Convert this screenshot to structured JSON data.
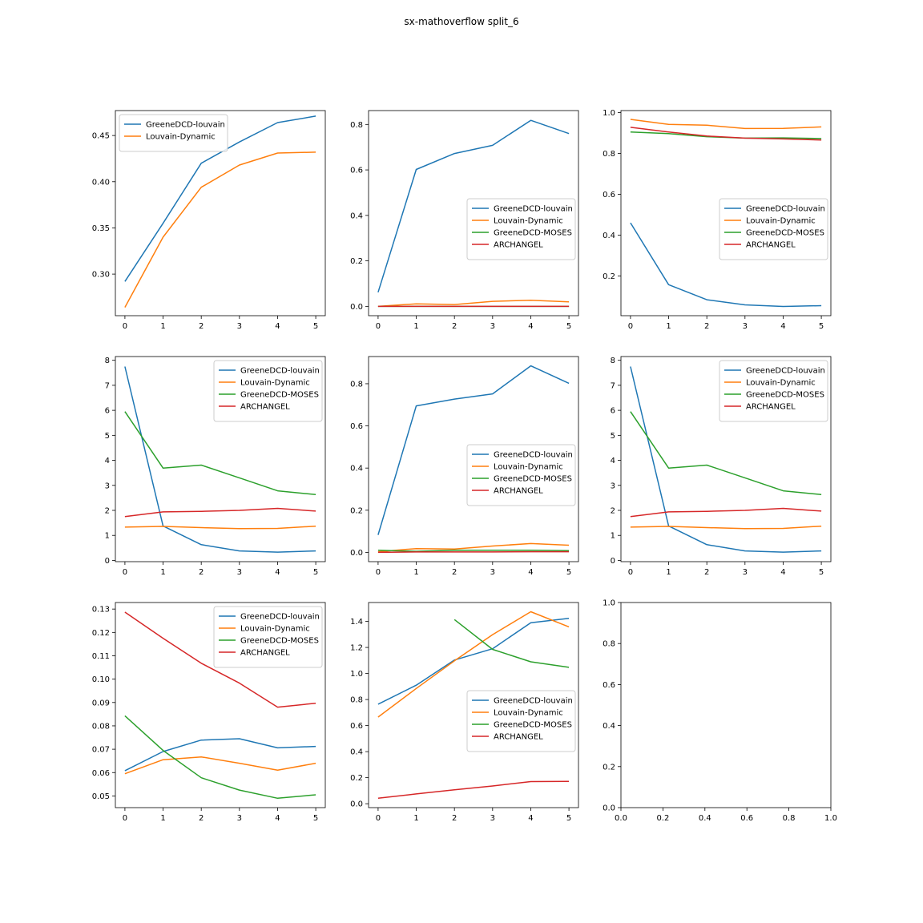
{
  "figure": {
    "title": "sx-mathoverflow split_6"
  },
  "colors": {
    "GreeneDCD-louvain": "#1f77b4",
    "Louvain-Dynamic": "#ff7f0e",
    "GreeneDCD-MOSES": "#2ca02c",
    "ARCHANGEL": "#d62728"
  },
  "chart_data": [
    {
      "type": "line",
      "title": "",
      "xlabel": "",
      "ylabel": "",
      "x": [
        0,
        1,
        2,
        3,
        4,
        5
      ],
      "ylim": [
        0.255,
        0.477
      ],
      "yticks": [
        0.3,
        0.35,
        0.4,
        0.45
      ],
      "ytick_labels": [
        "0.30",
        "0.35",
        "0.40",
        "0.45"
      ],
      "xticks": [
        0,
        1,
        2,
        3,
        4,
        5
      ],
      "xtick_labels": [
        "0",
        "1",
        "2",
        "3",
        "4",
        "5"
      ],
      "legend": "upper-left",
      "series": [
        {
          "name": "GreeneDCD-louvain",
          "values": [
            0.292,
            0.355,
            0.42,
            0.443,
            0.464,
            0.471
          ]
        },
        {
          "name": "Louvain-Dynamic",
          "values": [
            0.264,
            0.34,
            0.394,
            0.418,
            0.431,
            0.432
          ]
        }
      ]
    },
    {
      "type": "line",
      "title": "",
      "xlabel": "",
      "ylabel": "",
      "x": [
        0,
        1,
        2,
        3,
        4,
        5
      ],
      "ylim": [
        -0.041,
        0.861
      ],
      "yticks": [
        0.0,
        0.2,
        0.4,
        0.6,
        0.8
      ],
      "ytick_labels": [
        "0.0",
        "0.2",
        "0.4",
        "0.6",
        "0.8"
      ],
      "xticks": [
        0,
        1,
        2,
        3,
        4,
        5
      ],
      "xtick_labels": [
        "0",
        "1",
        "2",
        "3",
        "4",
        "5"
      ],
      "legend": "center-right",
      "series": [
        {
          "name": "GreeneDCD-louvain",
          "values": [
            0.062,
            0.602,
            0.672,
            0.708,
            0.818,
            0.76
          ]
        },
        {
          "name": "Louvain-Dynamic",
          "values": [
            0.0,
            0.011,
            0.008,
            0.022,
            0.027,
            0.02
          ]
        },
        {
          "name": "GreeneDCD-MOSES",
          "values": [
            0.0,
            0.0,
            0.0,
            0.0,
            0.0,
            0.0
          ]
        },
        {
          "name": "ARCHANGEL",
          "values": [
            0.0,
            0.0,
            0.0,
            0.0,
            0.0,
            0.0
          ]
        }
      ]
    },
    {
      "type": "line",
      "title": "",
      "xlabel": "",
      "ylabel": "",
      "x": [
        0,
        1,
        2,
        3,
        4,
        5
      ],
      "ylim": [
        0.005,
        1.01
      ],
      "yticks": [
        0.2,
        0.4,
        0.6,
        0.8,
        1.0
      ],
      "ytick_labels": [
        "0.2",
        "0.4",
        "0.6",
        "0.8",
        "1.0"
      ],
      "xticks": [
        0,
        1,
        2,
        3,
        4,
        5
      ],
      "xtick_labels": [
        "0",
        "1",
        "2",
        "3",
        "4",
        "5"
      ],
      "legend": "center-right",
      "series": [
        {
          "name": "GreeneDCD-louvain",
          "values": [
            0.46,
            0.157,
            0.083,
            0.058,
            0.05,
            0.054
          ]
        },
        {
          "name": "Louvain-Dynamic",
          "values": [
            0.967,
            0.942,
            0.938,
            0.922,
            0.923,
            0.93
          ]
        },
        {
          "name": "GreeneDCD-MOSES",
          "values": [
            0.905,
            0.897,
            0.882,
            0.875,
            0.876,
            0.873
          ]
        },
        {
          "name": "ARCHANGEL",
          "values": [
            0.928,
            0.905,
            0.885,
            0.875,
            0.871,
            0.866
          ]
        }
      ]
    },
    {
      "type": "line",
      "title": "",
      "xlabel": "",
      "ylabel": "",
      "x": [
        0,
        1,
        2,
        3,
        4,
        5
      ],
      "ylim": [
        -0.05,
        8.15
      ],
      "yticks": [
        0,
        1,
        2,
        3,
        4,
        5,
        6,
        7,
        8
      ],
      "ytick_labels": [
        "0",
        "1",
        "2",
        "3",
        "4",
        "5",
        "6",
        "7",
        "8"
      ],
      "xticks": [
        0,
        1,
        2,
        3,
        4,
        5
      ],
      "xtick_labels": [
        "0",
        "1",
        "2",
        "3",
        "4",
        "5"
      ],
      "legend": "upper-right",
      "series": [
        {
          "name": "GreeneDCD-louvain",
          "values": [
            7.75,
            1.38,
            0.63,
            0.38,
            0.33,
            0.38
          ]
        },
        {
          "name": "Louvain-Dynamic",
          "values": [
            1.33,
            1.36,
            1.31,
            1.27,
            1.28,
            1.37
          ]
        },
        {
          "name": "GreeneDCD-MOSES",
          "values": [
            5.95,
            3.69,
            3.81,
            3.3,
            2.78,
            2.63
          ]
        },
        {
          "name": "ARCHANGEL",
          "values": [
            1.75,
            1.94,
            1.96,
            2.0,
            2.08,
            1.97
          ]
        }
      ]
    },
    {
      "type": "line",
      "title": "",
      "xlabel": "",
      "ylabel": "",
      "x": [
        0,
        1,
        2,
        3,
        4,
        5
      ],
      "ylim": [
        -0.044,
        0.929
      ],
      "yticks": [
        0.0,
        0.2,
        0.4,
        0.6,
        0.8
      ],
      "ytick_labels": [
        "0.0",
        "0.2",
        "0.4",
        "0.6",
        "0.8"
      ],
      "xticks": [
        0,
        1,
        2,
        3,
        4,
        5
      ],
      "xtick_labels": [
        "0",
        "1",
        "2",
        "3",
        "4",
        "5"
      ],
      "legend": "center-right",
      "series": [
        {
          "name": "GreeneDCD-louvain",
          "values": [
            0.083,
            0.695,
            0.727,
            0.752,
            0.885,
            0.802
          ]
        },
        {
          "name": "Louvain-Dynamic",
          "values": [
            0.003,
            0.018,
            0.016,
            0.03,
            0.042,
            0.034
          ]
        },
        {
          "name": "GreeneDCD-MOSES",
          "values": [
            0.01,
            0.005,
            0.01,
            0.01,
            0.01,
            0.008
          ]
        },
        {
          "name": "ARCHANGEL",
          "values": [
            0.0,
            0.002,
            0.002,
            0.002,
            0.003,
            0.003
          ]
        }
      ]
    },
    {
      "type": "line",
      "title": "",
      "xlabel": "",
      "ylabel": "",
      "x": [
        0,
        1,
        2,
        3,
        4,
        5
      ],
      "ylim": [
        -0.05,
        8.15
      ],
      "yticks": [
        0,
        1,
        2,
        3,
        4,
        5,
        6,
        7,
        8
      ],
      "ytick_labels": [
        "0",
        "1",
        "2",
        "3",
        "4",
        "5",
        "6",
        "7",
        "8"
      ],
      "xticks": [
        0,
        1,
        2,
        3,
        4,
        5
      ],
      "xtick_labels": [
        "0",
        "1",
        "2",
        "3",
        "4",
        "5"
      ],
      "legend": "upper-right",
      "series": [
        {
          "name": "GreeneDCD-louvain",
          "values": [
            7.75,
            1.38,
            0.63,
            0.38,
            0.33,
            0.38
          ]
        },
        {
          "name": "Louvain-Dynamic",
          "values": [
            1.33,
            1.36,
            1.31,
            1.27,
            1.28,
            1.37
          ]
        },
        {
          "name": "GreeneDCD-MOSES",
          "values": [
            5.95,
            3.69,
            3.81,
            3.3,
            2.78,
            2.63
          ]
        },
        {
          "name": "ARCHANGEL",
          "values": [
            1.75,
            1.94,
            1.96,
            2.0,
            2.08,
            1.97
          ]
        }
      ]
    },
    {
      "type": "line",
      "title": "",
      "xlabel": "",
      "ylabel": "",
      "x": [
        0,
        1,
        2,
        3,
        4,
        5
      ],
      "ylim": [
        0.045,
        0.1328
      ],
      "yticks": [
        0.05,
        0.06,
        0.07,
        0.08,
        0.09,
        0.1,
        0.11,
        0.12,
        0.13
      ],
      "ytick_labels": [
        "0.05",
        "0.06",
        "0.07",
        "0.08",
        "0.09",
        "0.10",
        "0.11",
        "0.12",
        "0.13"
      ],
      "xticks": [
        0,
        1,
        2,
        3,
        4,
        5
      ],
      "xtick_labels": [
        "0",
        "1",
        "2",
        "3",
        "4",
        "5"
      ],
      "legend": "upper-right",
      "series": [
        {
          "name": "GreeneDCD-louvain",
          "values": [
            0.0608,
            0.069,
            0.0739,
            0.0745,
            0.0706,
            0.0712
          ]
        },
        {
          "name": "Louvain-Dynamic",
          "values": [
            0.0595,
            0.0655,
            0.0667,
            0.064,
            0.061,
            0.064
          ]
        },
        {
          "name": "GreeneDCD-MOSES",
          "values": [
            0.0843,
            0.0695,
            0.0578,
            0.0525,
            0.049,
            0.0505
          ]
        },
        {
          "name": "ARCHANGEL",
          "values": [
            0.1287,
            0.1175,
            0.1068,
            0.0983,
            0.088,
            0.0897
          ]
        }
      ]
    },
    {
      "type": "line",
      "title": "",
      "xlabel": "",
      "ylabel": "",
      "x": [
        0,
        1,
        2,
        3,
        4,
        5
      ],
      "ylim": [
        -0.03,
        1.545
      ],
      "yticks": [
        0.0,
        0.2,
        0.4,
        0.6,
        0.8,
        1.0,
        1.2,
        1.4
      ],
      "ytick_labels": [
        "0.0",
        "0.2",
        "0.4",
        "0.6",
        "0.8",
        "1.0",
        "1.2",
        "1.4"
      ],
      "xticks": [
        0,
        1,
        2,
        3,
        4,
        5
      ],
      "xtick_labels": [
        "0",
        "1",
        "2",
        "3",
        "4",
        "5"
      ],
      "legend": "center-right",
      "series": [
        {
          "name": "GreeneDCD-louvain",
          "values": [
            0.764,
            0.91,
            1.103,
            1.19,
            1.39,
            1.423
          ]
        },
        {
          "name": "Louvain-Dynamic",
          "values": [
            0.665,
            0.885,
            1.097,
            1.298,
            1.474,
            1.358
          ]
        },
        {
          "name": "GreeneDCD-MOSES",
          "values": [
            null,
            null,
            1.414,
            1.185,
            1.09,
            1.047
          ]
        },
        {
          "name": "ARCHANGEL",
          "values": [
            0.042,
            0.075,
            0.107,
            0.136,
            0.17,
            0.172
          ]
        }
      ]
    },
    {
      "type": "line",
      "title": "",
      "xlabel": "",
      "ylabel": "",
      "x": [],
      "xlim": [
        0.0,
        1.0
      ],
      "ylim": [
        0.0,
        1.0
      ],
      "yticks": [
        0.0,
        0.2,
        0.4,
        0.6,
        0.8,
        1.0
      ],
      "ytick_labels": [
        "0.0",
        "0.2",
        "0.4",
        "0.6",
        "0.8",
        "1.0"
      ],
      "xticks": [
        0.0,
        0.2,
        0.4,
        0.6,
        0.8,
        1.0
      ],
      "xtick_labels": [
        "0.0",
        "0.2",
        "0.4",
        "0.6",
        "0.8",
        "1.0"
      ],
      "legend": "none",
      "series": []
    }
  ]
}
